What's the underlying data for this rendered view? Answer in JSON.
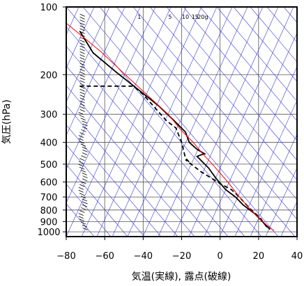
{
  "chart_data": {
    "type": "line",
    "title": "",
    "xlabel": "気温(実線), 露点(破線)",
    "ylabel": "気圧(hPa)",
    "x_ticks": [
      -80,
      -60,
      -40,
      -20,
      0,
      20,
      40
    ],
    "y_ticks": [
      100,
      200,
      300,
      400,
      500,
      600,
      700,
      800,
      900,
      1000
    ],
    "xlim": [
      -80,
      40
    ],
    "ylim": [
      1050,
      100
    ],
    "y_scale": "log",
    "grid": true,
    "mixing_ratio_labels": [
      "1",
      "5",
      "10",
      "15",
      "20g"
    ],
    "series": [
      {
        "style": "solid",
        "color": "#000000",
        "points": [
          [
            -73,
            128
          ],
          [
            -66,
            160
          ],
          [
            -54,
            195
          ],
          [
            -42,
            235
          ],
          [
            -32,
            275
          ],
          [
            -24,
            320
          ],
          [
            -18,
            360
          ],
          [
            -16,
            400
          ],
          [
            -12,
            430
          ],
          [
            -8,
            450
          ],
          [
            -10,
            455
          ],
          [
            -12,
            462
          ],
          [
            -6,
            520
          ],
          [
            -2,
            580
          ],
          [
            3,
            650
          ],
          [
            8,
            700
          ],
          [
            12,
            760
          ],
          [
            18,
            830
          ],
          [
            22,
            900
          ],
          [
            24,
            940
          ],
          [
            26,
            975
          ]
        ]
      },
      {
        "style": "dashed",
        "color": "#000000",
        "points": [
          [
            -73,
            225
          ],
          [
            -45,
            225
          ],
          [
            -40,
            245
          ],
          [
            -34,
            280
          ],
          [
            -28,
            320
          ],
          [
            -23,
            345
          ],
          [
            -20,
            400
          ],
          [
            -18,
            470
          ],
          [
            -16,
            490
          ],
          [
            -18,
            478
          ],
          [
            -10,
            540
          ],
          [
            0,
            610
          ],
          [
            6,
            650
          ],
          [
            10,
            700
          ],
          [
            15,
            780
          ],
          [
            21,
            870
          ],
          [
            23,
            920
          ],
          [
            25,
            970
          ]
        ]
      },
      {
        "style": "solid",
        "color": "#ff0000",
        "points": [
          [
            -80,
            118
          ],
          [
            -62,
            158
          ],
          [
            -48,
            205
          ],
          [
            -36,
            255
          ],
          [
            -27,
            300
          ],
          [
            -20,
            355
          ],
          [
            -14,
            400
          ],
          [
            -9,
            450
          ],
          [
            -4,
            500
          ],
          [
            4,
            600
          ],
          [
            10,
            700
          ],
          [
            16,
            800
          ],
          [
            21,
            880
          ],
          [
            24,
            930
          ],
          [
            26,
            960
          ],
          [
            28,
            990
          ]
        ]
      }
    ],
    "wind_barb_axis_x": -70
  }
}
